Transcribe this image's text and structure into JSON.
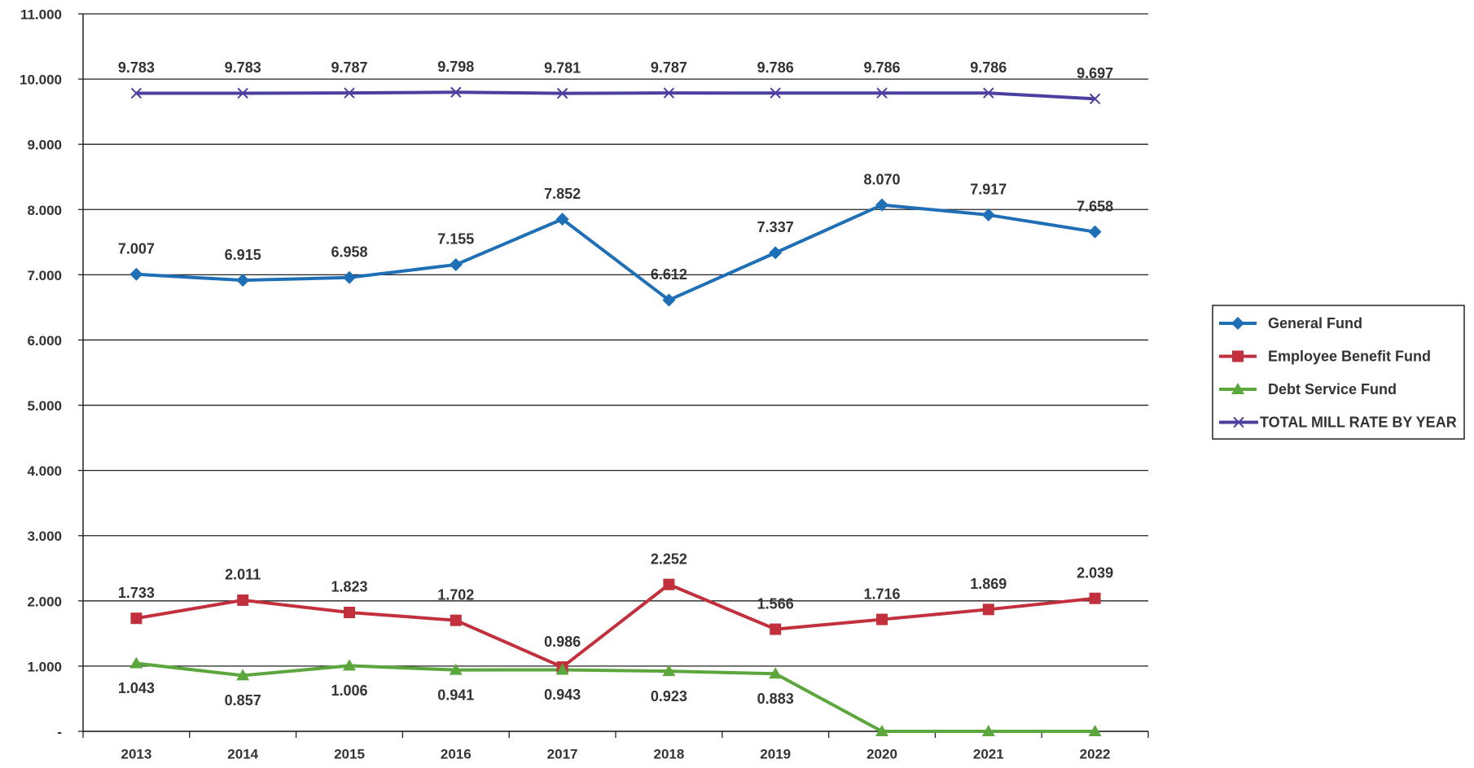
{
  "chart_data": {
    "type": "line",
    "categories": [
      "2013",
      "2014",
      "2015",
      "2016",
      "2017",
      "2018",
      "2019",
      "2020",
      "2021",
      "2022"
    ],
    "series": [
      {
        "name": "General Fund",
        "color": "#1f6fb6",
        "marker": "diamond",
        "label_position": "above",
        "values": [
          7.007,
          6.915,
          6.958,
          7.155,
          7.852,
          6.612,
          7.337,
          8.07,
          7.917,
          7.658
        ],
        "value_labels": [
          "7.007",
          "6.915",
          "6.958",
          "7.155",
          "7.852",
          "6.612",
          "7.337",
          "8.070",
          "7.917",
          "7.658"
        ]
      },
      {
        "name": "Employee Benefit Fund",
        "color": "#c1303c",
        "marker": "square",
        "label_position": "above",
        "values": [
          1.733,
          2.011,
          1.823,
          1.702,
          0.986,
          2.252,
          1.566,
          1.716,
          1.869,
          2.039
        ],
        "value_labels": [
          "1.733",
          "2.011",
          "1.823",
          "1.702",
          "0.986",
          "2.252",
          "1.566",
          "1.716",
          "1.869",
          "2.039"
        ]
      },
      {
        "name": "Debt Service Fund",
        "color": "#5ba73e",
        "marker": "triangle",
        "label_position": "below",
        "values": [
          1.043,
          0.857,
          1.006,
          0.941,
          0.943,
          0.923,
          0.883,
          0,
          0,
          0
        ],
        "value_labels": [
          "1.043",
          "0.857",
          "1.006",
          "0.941",
          "0.943",
          "0.923",
          "0.883",
          null,
          null,
          null
        ]
      },
      {
        "name": "TOTAL MILL RATE BY YEAR",
        "color": "#4b40a0",
        "marker": "x",
        "label_position": "above",
        "values": [
          9.783,
          9.783,
          9.787,
          9.798,
          9.781,
          9.787,
          9.786,
          9.786,
          9.786,
          9.697
        ],
        "value_labels": [
          "9.783",
          "9.783",
          "9.787",
          "9.798",
          "9.781",
          "9.787",
          "9.786",
          "9.786",
          "9.786",
          "9.697"
        ]
      }
    ],
    "ylim": [
      0,
      11
    ],
    "yticks": [
      {
        "value": 0,
        "label": "-"
      },
      {
        "value": 1,
        "label": "1.000"
      },
      {
        "value": 2,
        "label": "2.000"
      },
      {
        "value": 3,
        "label": "3.000"
      },
      {
        "value": 4,
        "label": "4.000"
      },
      {
        "value": 5,
        "label": "5.000"
      },
      {
        "value": 6,
        "label": "6.000"
      },
      {
        "value": 7,
        "label": "7.000"
      },
      {
        "value": 8,
        "label": "8.000"
      },
      {
        "value": 9,
        "label": "9.000"
      },
      {
        "value": 10,
        "label": "10.000"
      },
      {
        "value": 11,
        "label": "11.000"
      }
    ],
    "grid": true,
    "legend": "right"
  }
}
